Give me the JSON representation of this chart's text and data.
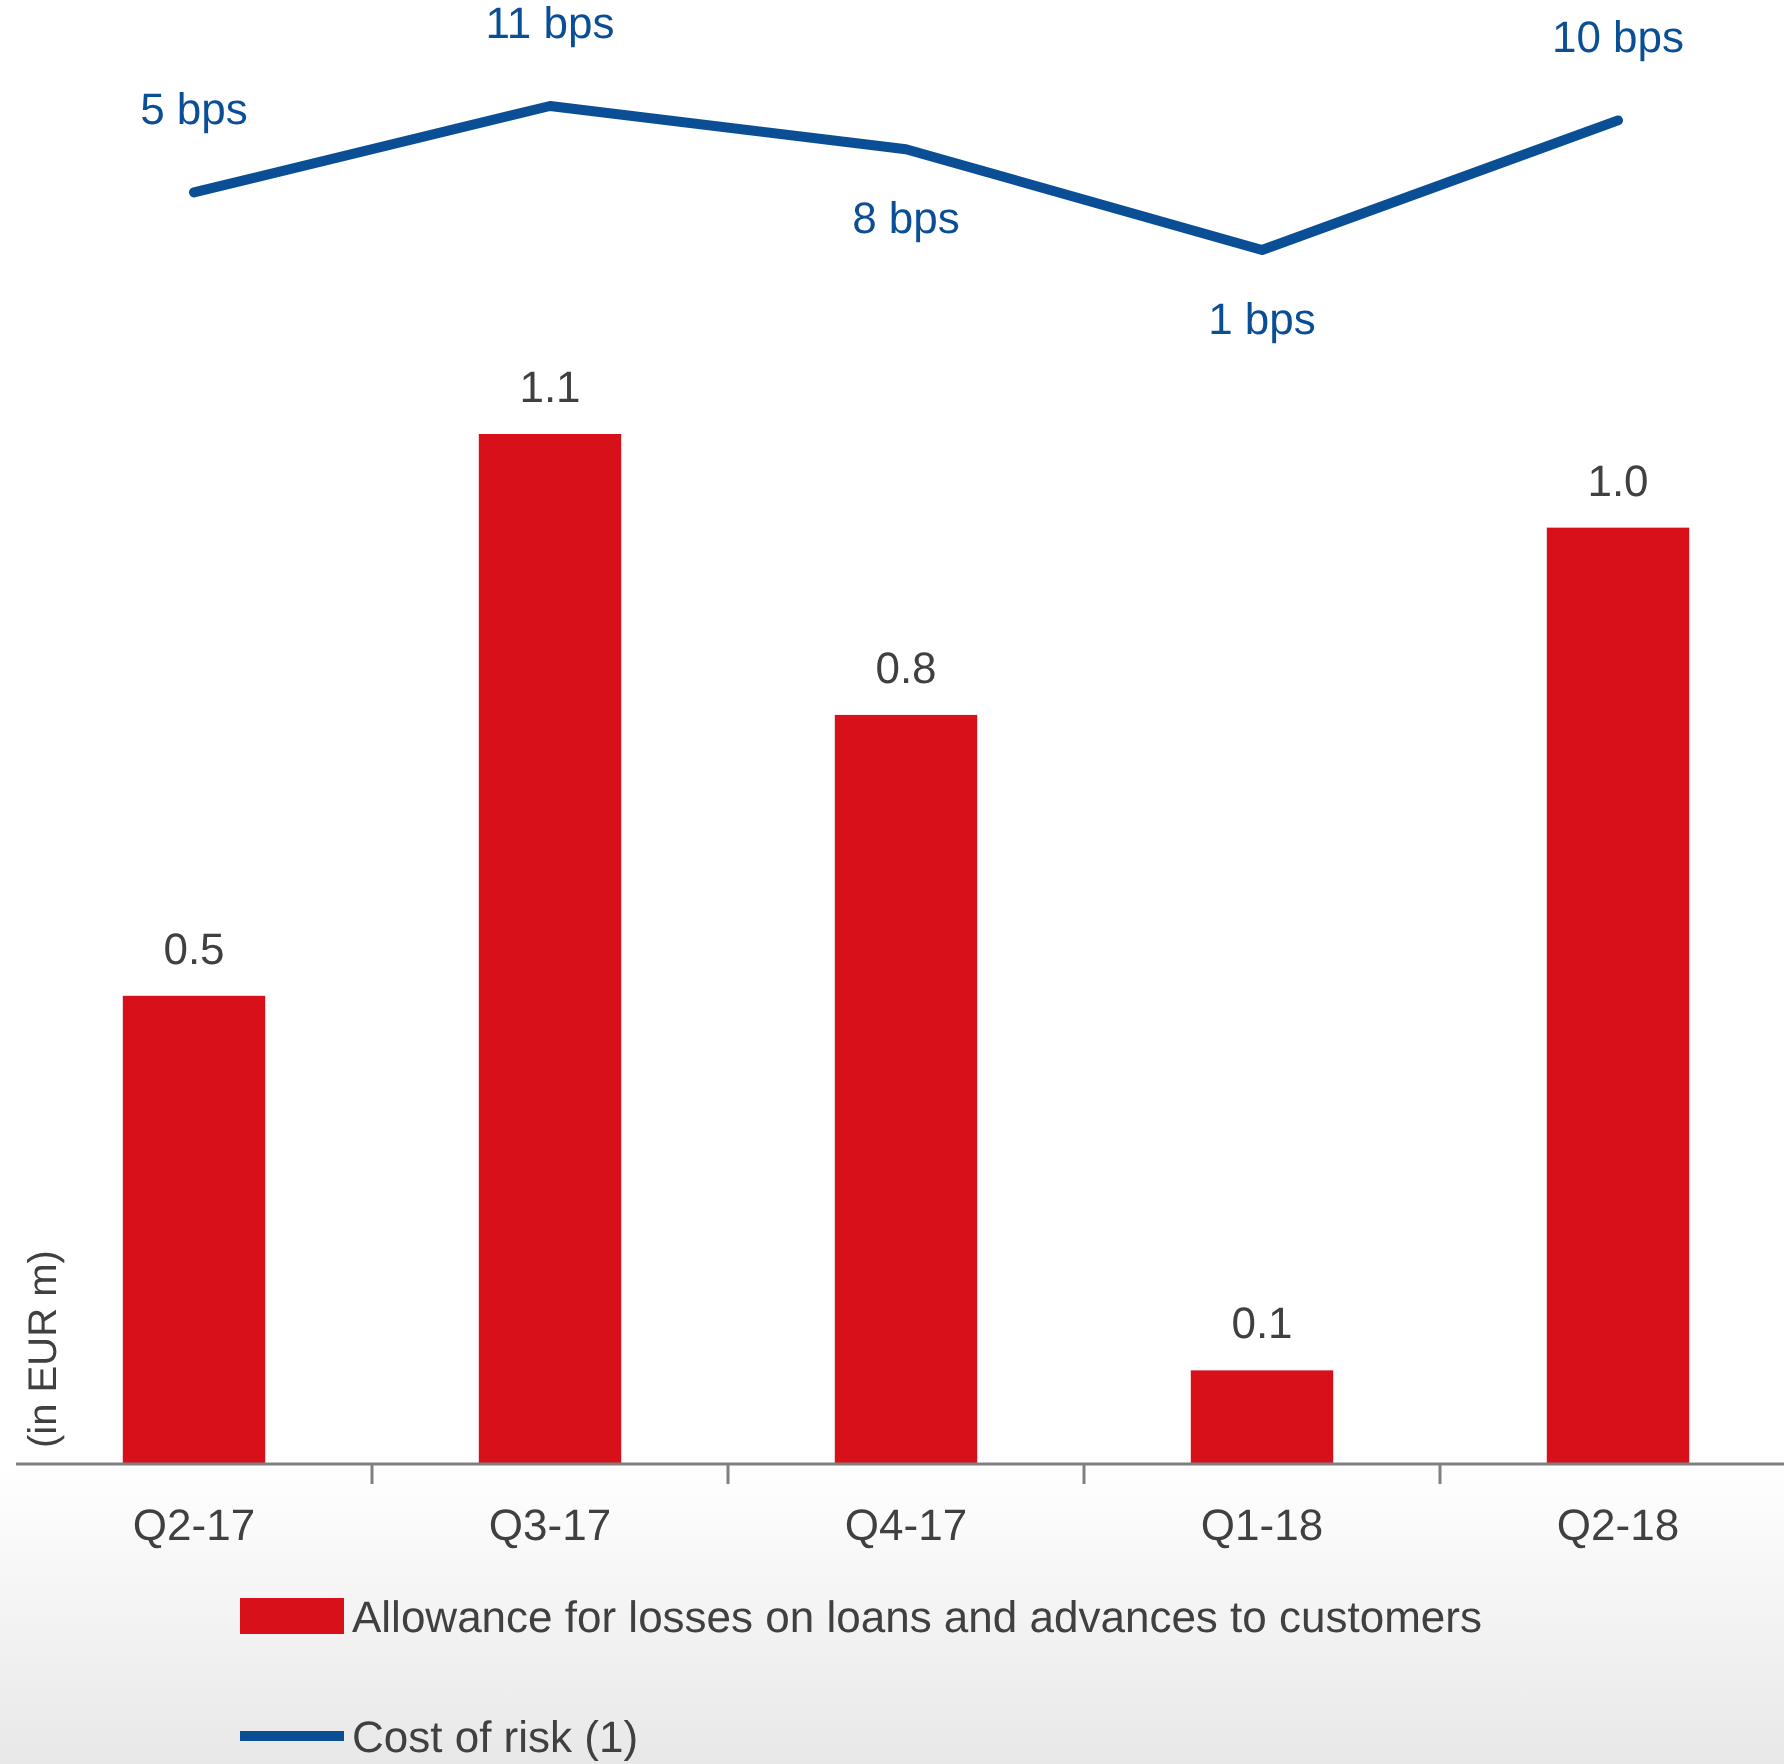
{
  "chart_data": [
    {
      "type": "line",
      "legend": "bottom",
      "marker": "none",
      "line_style": "solid",
      "categories": [
        null,
        null,
        null,
        null,
        null
      ],
      "tick_labels": false,
      "series": [
        {
          "name": "Cost of risk (1)",
          "color": "#0a4f96",
          "values": [
            5,
            11,
            8,
            1,
            10
          ],
          "value_labels": [
            "5 bps",
            "11 bps",
            "8 bps",
            "1 bps",
            "10 bps"
          ]
        }
      ]
    },
    {
      "type": "bar",
      "ylabel": "(in EUR m)",
      "categories": [
        "Q2-17",
        "Q3-17",
        "Q4-17",
        "Q1-18",
        "Q2-18"
      ],
      "legend": "bottom",
      "tick_labels": "x",
      "grid": false,
      "series": [
        {
          "name": "Allowance for losses on loans and advances to customers",
          "color": "#d7101a",
          "values": [
            0.5,
            1.1,
            0.8,
            0.1,
            1.0
          ],
          "value_labels": [
            "0.5",
            "1.1",
            "0.8",
            "0.1",
            "1.0"
          ]
        }
      ]
    }
  ]
}
